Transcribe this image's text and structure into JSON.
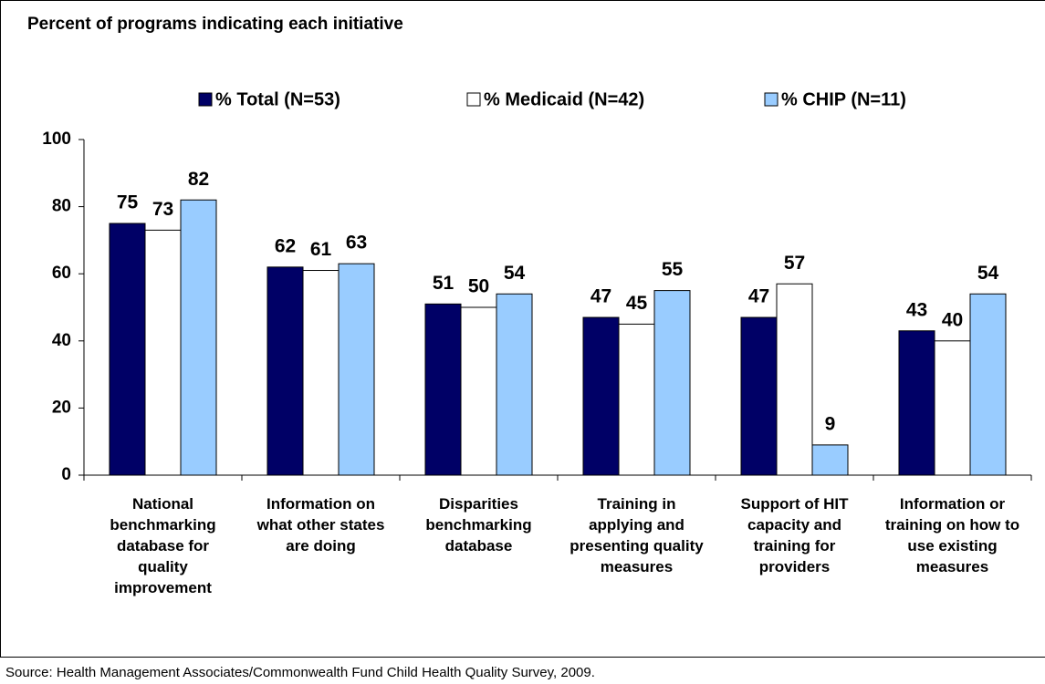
{
  "chart_data": {
    "type": "bar",
    "title": "Percent of programs indicating each initiative",
    "categories": [
      "National benchmarking database for quality improvement",
      "Information on what other states are doing",
      "Disparities benchmarking database",
      "Training in applying and presenting quality measures",
      "Support of HIT capacity and training for providers",
      "Information or training on how to use existing measures"
    ],
    "series": [
      {
        "name": "% Total (N=53)",
        "color": "#000066",
        "values": [
          75,
          62,
          51,
          47,
          47,
          43
        ]
      },
      {
        "name": "% Medicaid (N=42)",
        "color": "#ffffff",
        "values": [
          73,
          61,
          50,
          45,
          57,
          40
        ]
      },
      {
        "name": "% CHIP (N=11)",
        "color": "#99ccff",
        "values": [
          82,
          63,
          54,
          55,
          9,
          54
        ]
      }
    ],
    "ylim": [
      0,
      100
    ],
    "yticks": [
      0,
      20,
      40,
      60,
      80,
      100
    ],
    "legend": "top",
    "source": "Source: Health Management Associates/Commonwealth Fund Child Health Quality Survey, 2009."
  }
}
